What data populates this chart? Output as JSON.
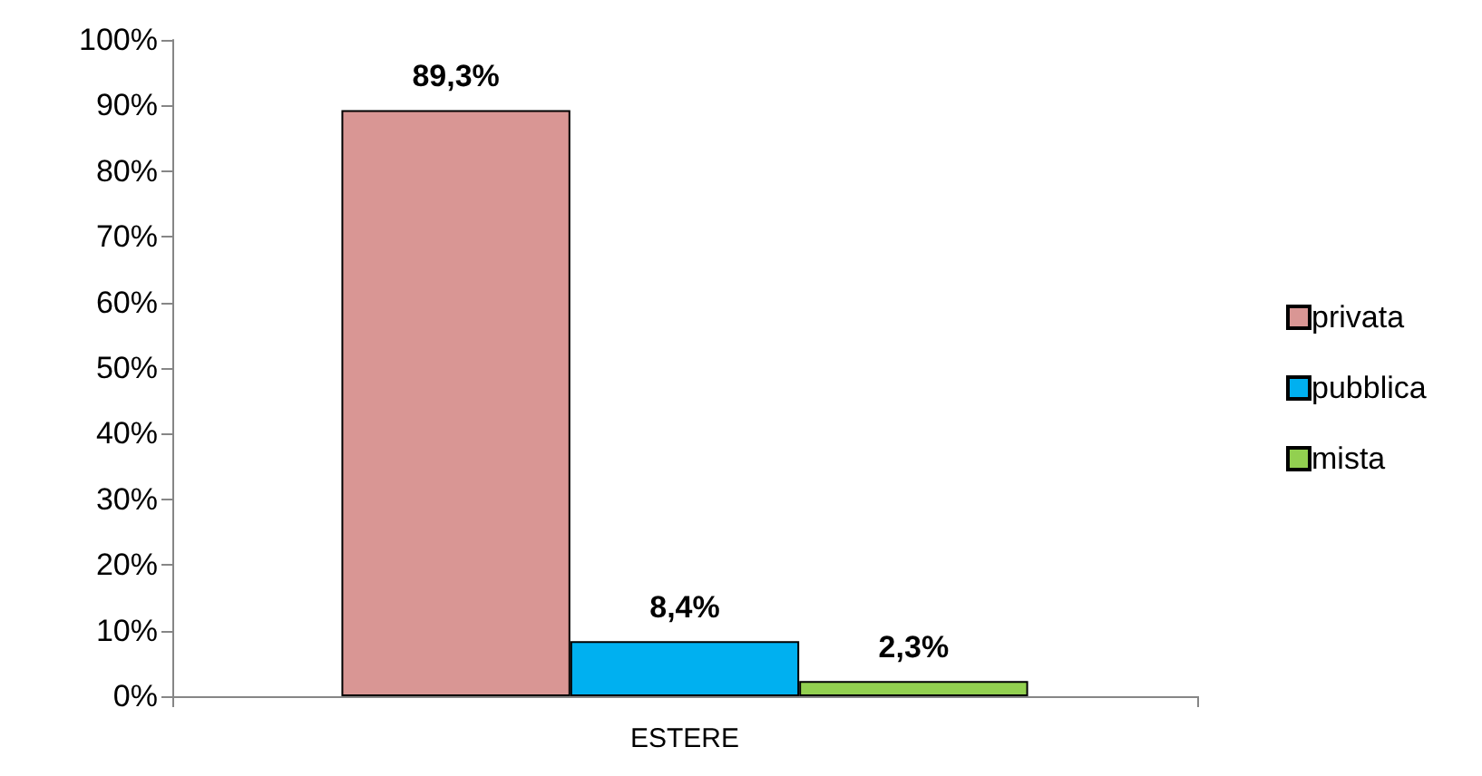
{
  "chart_data": {
    "type": "bar",
    "categories": [
      "ESTERE"
    ],
    "series": [
      {
        "name": "privata",
        "color": "#d99694",
        "values": [
          89.3
        ],
        "value_labels": [
          "89,3%"
        ]
      },
      {
        "name": "pubblica",
        "color": "#00b0f0",
        "values": [
          8.4
        ],
        "value_labels": [
          "8,4%"
        ]
      },
      {
        "name": "mista",
        "color": "#92d050",
        "values": [
          2.3
        ],
        "value_labels": [
          "2,3%"
        ]
      }
    ],
    "ylim": [
      0,
      100
    ],
    "yticks": [
      {
        "value": 0,
        "label": "0%"
      },
      {
        "value": 10,
        "label": "10%"
      },
      {
        "value": 20,
        "label": "20%"
      },
      {
        "value": 30,
        "label": "30%"
      },
      {
        "value": 40,
        "label": "40%"
      },
      {
        "value": 50,
        "label": "50%"
      },
      {
        "value": 60,
        "label": "60%"
      },
      {
        "value": 70,
        "label": "70%"
      },
      {
        "value": 80,
        "label": "80%"
      },
      {
        "value": 90,
        "label": "90%"
      },
      {
        "value": 100,
        "label": "100%"
      }
    ],
    "grid": false,
    "legend": "right"
  }
}
